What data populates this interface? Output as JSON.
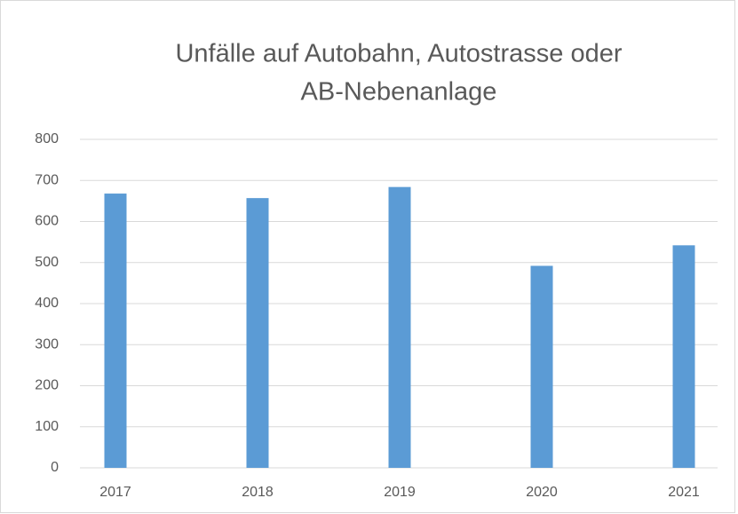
{
  "chart_data": {
    "type": "bar",
    "title": [
      "Unfälle auf Autobahn, Autostrasse oder",
      "AB-Nebenanlage"
    ],
    "categories": [
      "2017",
      "2018",
      "2019",
      "2020",
      "2021"
    ],
    "values": [
      668,
      657,
      684,
      492,
      542
    ],
    "color": "#5b9bd5",
    "ylim": [
      0,
      800
    ],
    "yticks": [
      0,
      100,
      200,
      300,
      400,
      500,
      600,
      700,
      800
    ],
    "grid": true
  }
}
